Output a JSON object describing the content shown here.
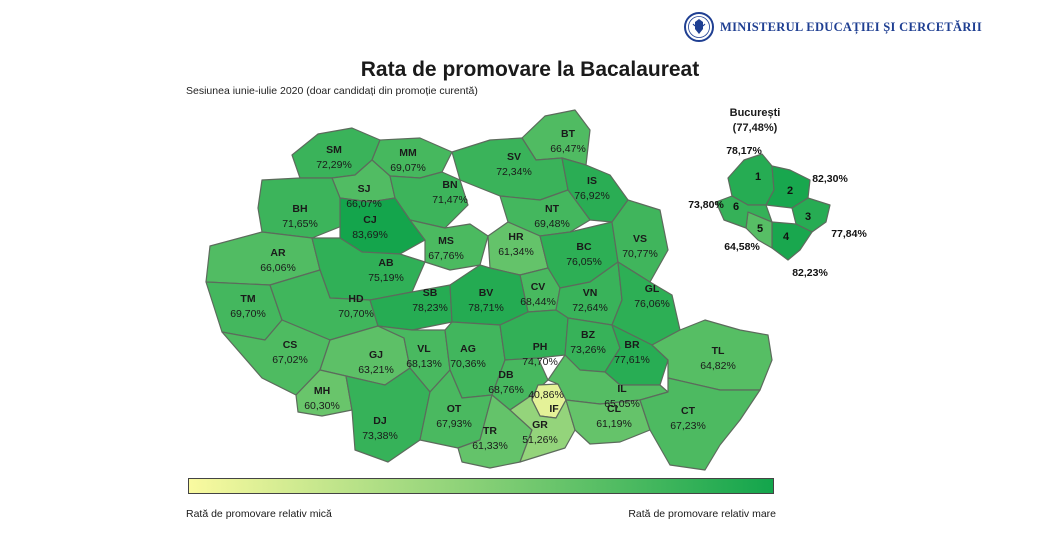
{
  "header": {
    "ministry_name": "MINISTERUL EDUCAȚIEI ȘI CERCETĂRII",
    "logo_icon": "romanian-coat-of-arms-seal-icon"
  },
  "title": "Rata de promovare la Bacalaureat",
  "subtitle": "Sesiunea iunie-iulie 2020 (doar candidați din promoție curentă)",
  "legend": {
    "low_label": "Rată de promovare relativ mică",
    "high_label": "Rată de promovare relativ mare",
    "color_low": "#fafaa0",
    "color_high": "#13a54c"
  },
  "counties": [
    {
      "code": "SM",
      "value": "72,29%",
      "pct": 72.29
    },
    {
      "code": "MM",
      "value": "69,07%",
      "pct": 69.07
    },
    {
      "code": "BT",
      "value": "66,47%",
      "pct": 66.47
    },
    {
      "code": "SV",
      "value": "72,34%",
      "pct": 72.34
    },
    {
      "code": "SJ",
      "value": "66,07%",
      "pct": 66.07
    },
    {
      "code": "BN",
      "value": "71,47%",
      "pct": 71.47
    },
    {
      "code": "IS",
      "value": "76,92%",
      "pct": 76.92
    },
    {
      "code": "BH",
      "value": "71,65%",
      "pct": 71.65
    },
    {
      "code": "CJ",
      "value": "83,69%",
      "pct": 83.69
    },
    {
      "code": "NT",
      "value": "69,48%",
      "pct": 69.48
    },
    {
      "code": "AR",
      "value": "66,06%",
      "pct": 66.06
    },
    {
      "code": "MS",
      "value": "67,76%",
      "pct": 67.76
    },
    {
      "code": "HR",
      "value": "61,34%",
      "pct": 61.34
    },
    {
      "code": "BC",
      "value": "76,05%",
      "pct": 76.05
    },
    {
      "code": "VS",
      "value": "70,77%",
      "pct": 70.77
    },
    {
      "code": "AB",
      "value": "75,19%",
      "pct": 75.19
    },
    {
      "code": "CV",
      "value": "68,44%",
      "pct": 68.44
    },
    {
      "code": "TM",
      "value": "69,70%",
      "pct": 69.7
    },
    {
      "code": "HD",
      "value": "70,70%",
      "pct": 70.7
    },
    {
      "code": "SB",
      "value": "78,23%",
      "pct": 78.23
    },
    {
      "code": "BV",
      "value": "78,71%",
      "pct": 78.71
    },
    {
      "code": "VN",
      "value": "72,64%",
      "pct": 72.64
    },
    {
      "code": "GL",
      "value": "76,06%",
      "pct": 76.06
    },
    {
      "code": "CS",
      "value": "67,02%",
      "pct": 67.02
    },
    {
      "code": "GJ",
      "value": "63,21%",
      "pct": 63.21
    },
    {
      "code": "VL",
      "value": "68,13%",
      "pct": 68.13
    },
    {
      "code": "AG",
      "value": "70,36%",
      "pct": 70.36
    },
    {
      "code": "PH",
      "value": "74,70%",
      "pct": 74.7
    },
    {
      "code": "BZ",
      "value": "73,26%",
      "pct": 73.26
    },
    {
      "code": "BR",
      "value": "77,61%",
      "pct": 77.61
    },
    {
      "code": "TL",
      "value": "64,82%",
      "pct": 64.82
    },
    {
      "code": "MH",
      "value": "60,30%",
      "pct": 60.3
    },
    {
      "code": "DB",
      "value": "68,76%",
      "pct": 68.76
    },
    {
      "code": "IF",
      "value": "40,86%",
      "pct": 40.86
    },
    {
      "code": "IL",
      "value": "65,05%",
      "pct": 65.05
    },
    {
      "code": "DJ",
      "value": "73,38%",
      "pct": 73.38
    },
    {
      "code": "OT",
      "value": "67,93%",
      "pct": 67.93
    },
    {
      "code": "TR",
      "value": "61,33%",
      "pct": 61.33
    },
    {
      "code": "GR",
      "value": "51,26%",
      "pct": 51.26
    },
    {
      "code": "CL",
      "value": "61,19%",
      "pct": 61.19
    },
    {
      "code": "CT",
      "value": "67,23%",
      "pct": 67.23
    }
  ],
  "bucharest": {
    "name": "București",
    "total": "(77,48%)",
    "sectors": [
      {
        "num": "1",
        "value": "78,17%",
        "pct": 78.17
      },
      {
        "num": "2",
        "value": "82,30%",
        "pct": 82.3
      },
      {
        "num": "3",
        "value": "77,84%",
        "pct": 77.84
      },
      {
        "num": "4",
        "value": "82,23%",
        "pct": 82.23
      },
      {
        "num": "5",
        "value": "64,58%",
        "pct": 64.58
      },
      {
        "num": "6",
        "value": "73,80%",
        "pct": 73.8
      }
    ]
  }
}
